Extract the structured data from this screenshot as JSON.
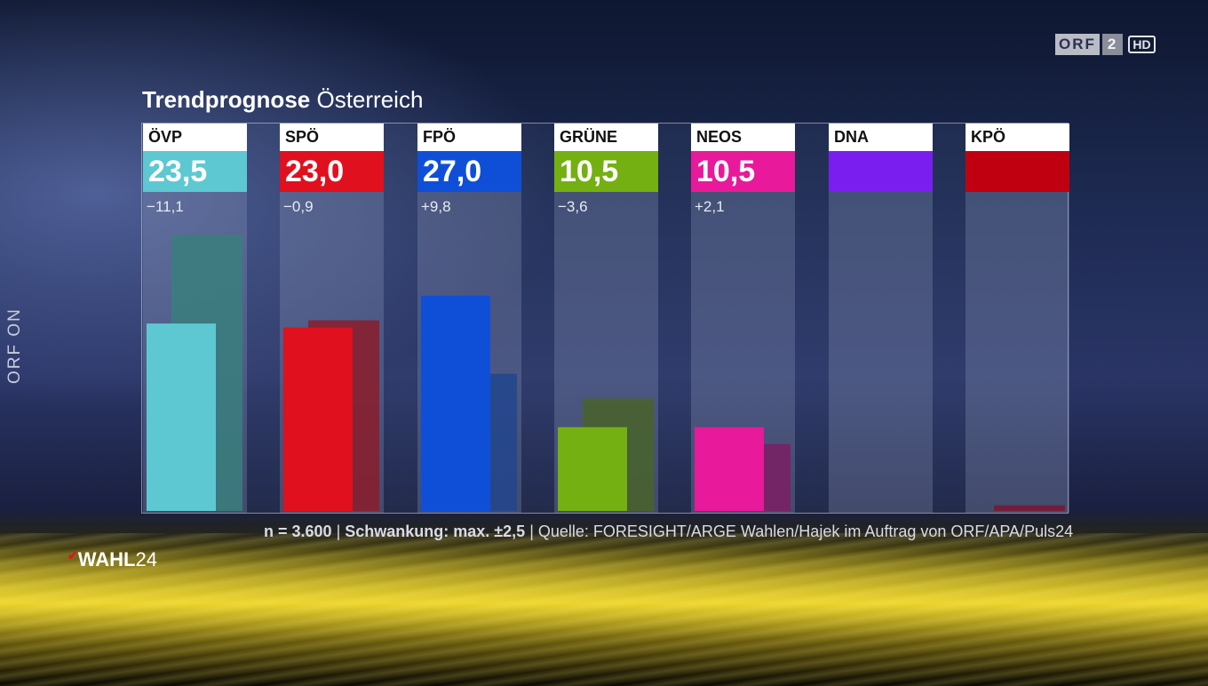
{
  "channel": {
    "logo_left": "ORF",
    "logo_num": "2",
    "logo_hd": "HD",
    "side_label": "ORF ON"
  },
  "header": {
    "title_bold": "Trendprognose",
    "title_rest": "Österreich"
  },
  "chart_data": {
    "type": "bar",
    "title": "Trendprognose Österreich",
    "categories": [
      "ÖVP",
      "SPÖ",
      "FPÖ",
      "GRÜNE",
      "NEOS",
      "DNA",
      "KPÖ"
    ],
    "value_labels": [
      "23,5",
      "23,0",
      "27,0",
      "10,5",
      "10,5",
      "",
      ""
    ],
    "diff_labels": [
      "−11,1",
      "−0,9",
      "+9,8",
      "−3,6",
      "+2,1",
      "",
      ""
    ],
    "series": [
      {
        "values": [
          23.5,
          23.0,
          27.0,
          10.5,
          10.5,
          null,
          null
        ]
      },
      {
        "values": [
          34.6,
          23.9,
          17.2,
          14.1,
          8.4,
          null,
          0.7
        ]
      }
    ],
    "colors": [
      "#5ec8d2",
      "#e0101e",
      "#0f4fd8",
      "#74b012",
      "#e8199a",
      "#7a1ef0",
      "#c00010"
    ],
    "prev_colors": [
      "#3a7f7e",
      "#8c1c2a",
      "#22458e",
      "#49632a",
      "#7b1f64",
      "#5a2a9a",
      "#7a1530"
    ],
    "ylim": [
      0,
      40
    ],
    "grid": false,
    "legend": "none"
  },
  "footer": {
    "n_text": "n = 3.600",
    "sep1": " | ",
    "swing_text": "Schwankung: max. ±2,5",
    "sep2": " | ",
    "source_text": "Quelle: FORESIGHT/ARGE Wahlen/Hajek im Auftrag von ORF/APA/Puls24"
  },
  "brand": {
    "wahl_word": "WAHL",
    "wahl_num": "24"
  }
}
